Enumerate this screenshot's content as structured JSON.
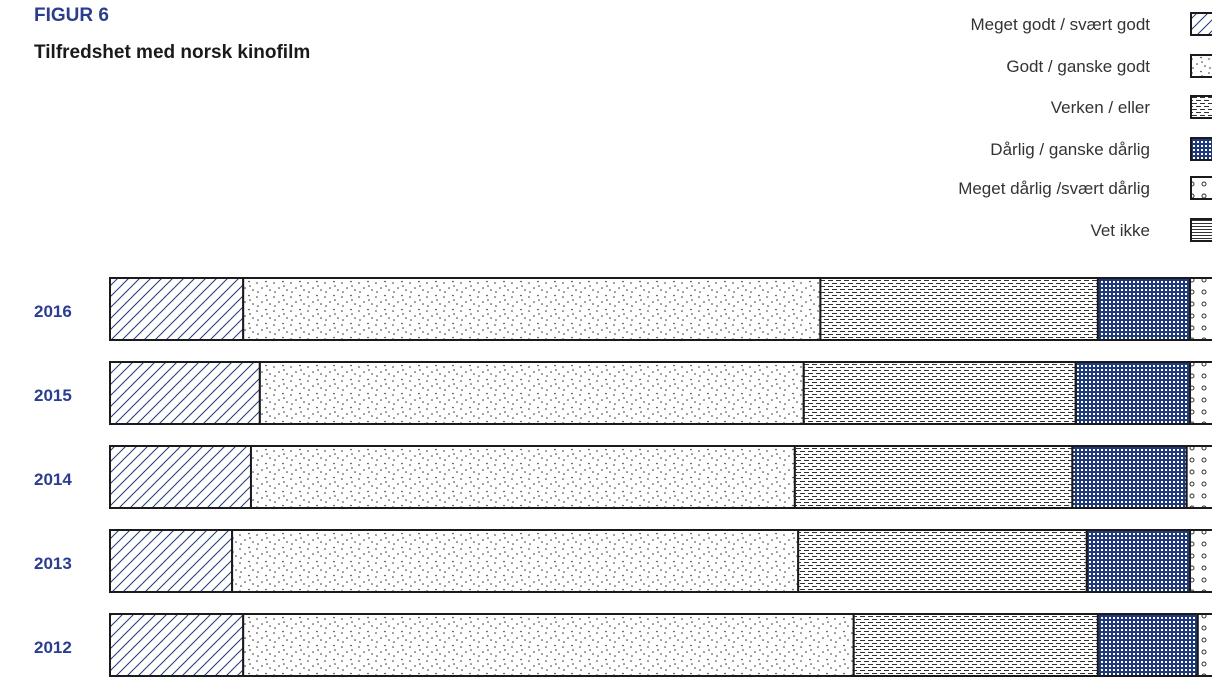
{
  "figure": {
    "label": "FIGUR 6",
    "title": "Tilfredshet med norsk kinofilm"
  },
  "chart_data": {
    "type": "bar",
    "orientation": "horizontal",
    "stacked": "percent",
    "title": "Tilfredshet med norsk kinofilm",
    "categories": [
      "2016",
      "2015",
      "2014",
      "2013",
      "2012"
    ],
    "series": [
      {
        "name": "Meget godt / svært godt",
        "pattern": "diagonal-lines",
        "values": [
          12,
          13.5,
          12.7,
          11,
          12
        ]
      },
      {
        "name": "Godt / ganske godt",
        "pattern": "dots",
        "values": [
          52,
          49,
          49,
          51,
          55
        ]
      },
      {
        "name": "Verken / eller",
        "pattern": "dashes",
        "values": [
          25,
          24.5,
          25,
          26,
          22
        ]
      },
      {
        "name": "Dårlig / ganske dårlig",
        "pattern": "navy-grid",
        "values": [
          8.3,
          10.3,
          10.3,
          9.3,
          9
        ]
      },
      {
        "name": "Meget dårlig /svært dårlig",
        "pattern": "circles",
        "values": [
          2.4,
          2.7,
          3,
          2.7,
          2
        ]
      },
      {
        "name": "Vet ikke",
        "pattern": "horizontal-lines",
        "values": [
          0.3,
          0,
          0,
          0,
          0
        ]
      }
    ],
    "legend": "top-right",
    "grid": false,
    "colors": {
      "outline": "#1a1a1a",
      "navy": "#1f3a7a",
      "label": "#2a3d8f"
    }
  }
}
